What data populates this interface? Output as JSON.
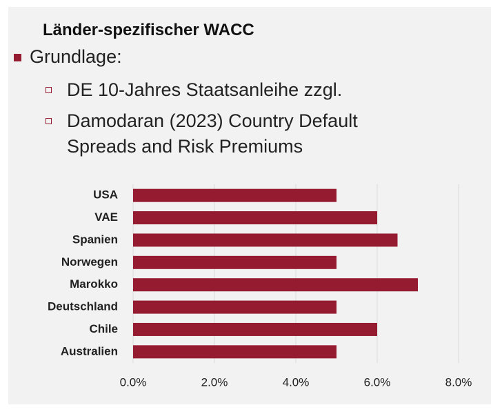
{
  "header": {
    "title": "Länder-spezifischer WACC"
  },
  "bullets": {
    "main": "Grundlage:",
    "sub": [
      "DE 10-Jahres Staatsanleihe zzgl.",
      "Damodaran (2023) Country Default Spreads and Risk Premiums"
    ]
  },
  "chart_data": {
    "type": "barh",
    "categories": [
      "USA",
      "VAE",
      "Spanien",
      "Norwegen",
      "Marokko",
      "Deutschland",
      "Chile",
      "Australien"
    ],
    "values": [
      5,
      6,
      6.5,
      5,
      7,
      5,
      6,
      5
    ],
    "color": "#951b31",
    "xlim": [
      0,
      8
    ],
    "xticks": [
      {
        "value": 0,
        "label": "0.0%"
      },
      {
        "value": 2,
        "label": "2.0%"
      },
      {
        "value": 4,
        "label": "4.0%"
      },
      {
        "value": 6,
        "label": "6.0%"
      },
      {
        "value": 8,
        "label": "8.0%"
      }
    ],
    "grid": true
  }
}
